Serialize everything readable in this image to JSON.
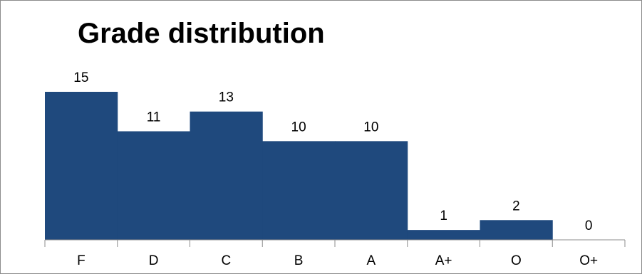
{
  "chart_data": {
    "type": "bar",
    "title": "Grade distribution",
    "categories": [
      "F",
      "D",
      "C",
      "B",
      "A",
      "A+",
      "O",
      "O+"
    ],
    "values": [
      15,
      11,
      13,
      10,
      10,
      1,
      2,
      0
    ],
    "xlabel": "",
    "ylabel": "",
    "ylim": [
      0,
      15
    ],
    "grid": false,
    "legend": "none",
    "bar_color": "#1F497D",
    "axis_color": "#8c8c8c"
  }
}
